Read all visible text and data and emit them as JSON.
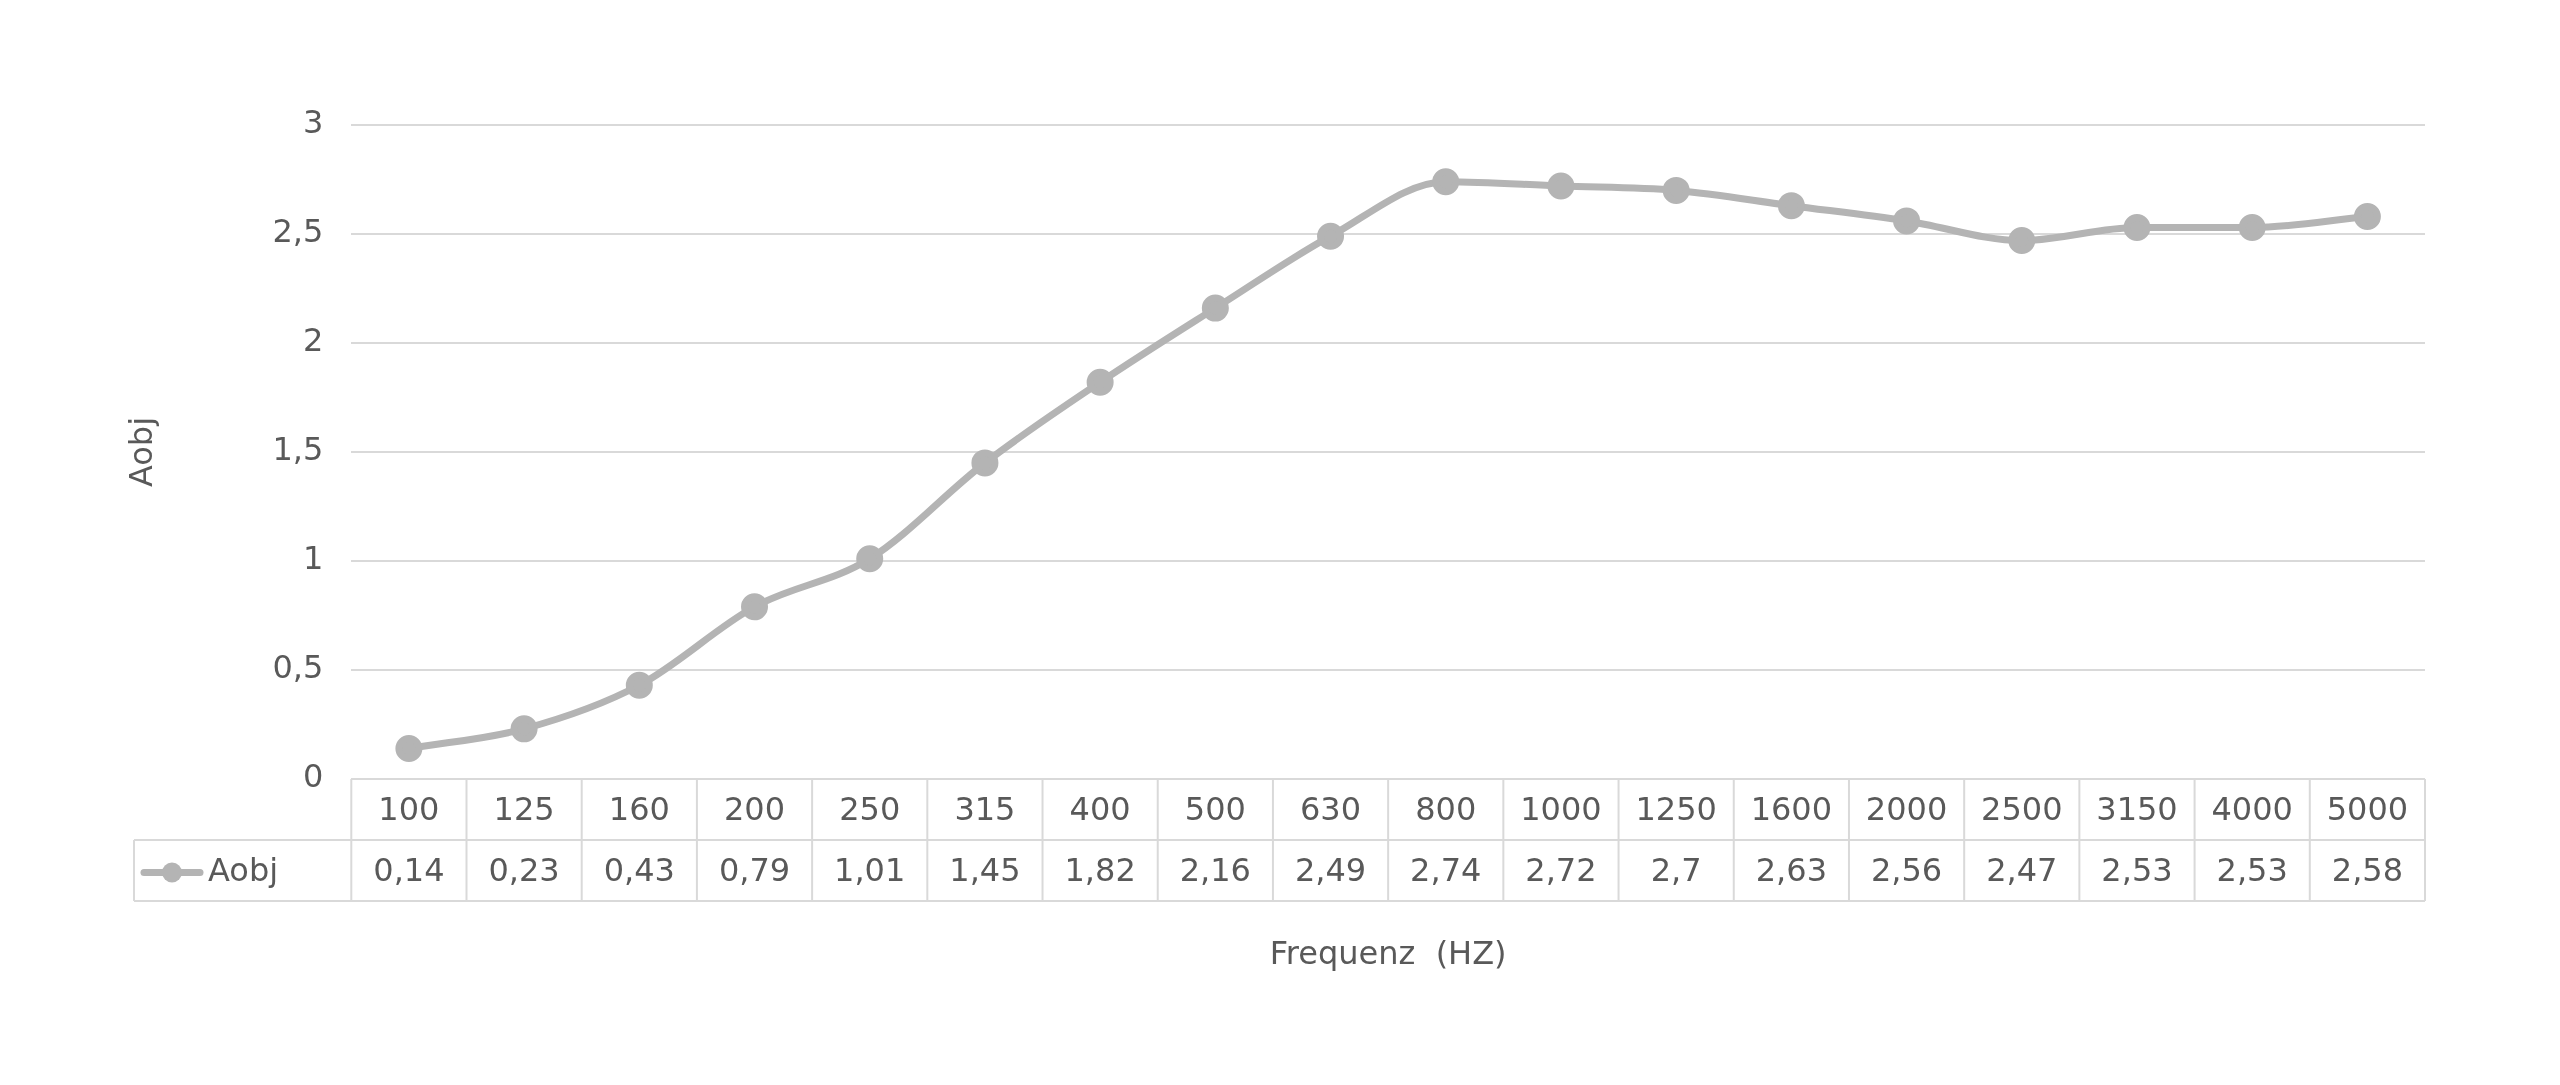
{
  "chart_data": {
    "type": "line",
    "xlabel": "Frequenz  (HZ)",
    "ylabel": "Aobj",
    "categories": [
      "100",
      "125",
      "160",
      "200",
      "250",
      "315",
      "400",
      "500",
      "630",
      "800",
      "1000",
      "1250",
      "1600",
      "2000",
      "2500",
      "3150",
      "4000",
      "5000"
    ],
    "series": [
      {
        "name": "Aobj",
        "color": "#b4b4b4",
        "values": [
          0.14,
          0.23,
          0.43,
          0.79,
          1.01,
          1.45,
          1.82,
          2.16,
          2.49,
          2.74,
          2.72,
          2.7,
          2.63,
          2.56,
          2.47,
          2.53,
          2.53,
          2.58
        ],
        "value_labels": [
          "0,14",
          "0,23",
          "0,43",
          "0,79",
          "1,01",
          "1,45",
          "1,82",
          "2,16",
          "2,49",
          "2,74",
          "2,72",
          "2,7",
          "2,63",
          "2,56",
          "2,47",
          "2,53",
          "2,53",
          "2,58"
        ]
      }
    ],
    "ylim": [
      0,
      3
    ],
    "yticks": [
      {
        "value": 0,
        "label": "0"
      },
      {
        "value": 0.5,
        "label": "0,5"
      },
      {
        "value": 1,
        "label": "1"
      },
      {
        "value": 1.5,
        "label": "1,5"
      },
      {
        "value": 2,
        "label": "2"
      },
      {
        "value": 2.5,
        "label": "2,5"
      },
      {
        "value": 3,
        "label": "3"
      }
    ],
    "grid": "y",
    "legend": "bottom",
    "marker": "circle",
    "line_style": "solid"
  }
}
